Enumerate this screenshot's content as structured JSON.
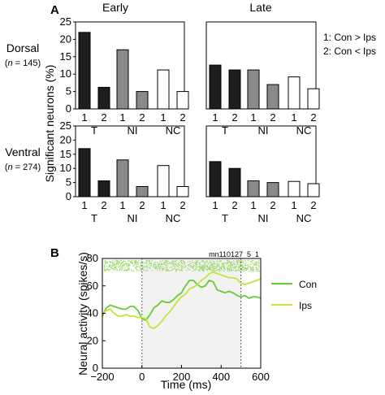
{
  "panel_labels": {
    "a": "A",
    "b": "B"
  },
  "column_titles": [
    "Early",
    "Late"
  ],
  "row_labels": [
    {
      "name": "Dorsal",
      "n_prefix": "n",
      "n_value": " = 145"
    },
    {
      "name": "Ventral",
      "n_prefix": "n",
      "n_value": " = 274"
    }
  ],
  "legend_a": [
    "1: Con > Ips",
    "2: Con < Ips"
  ],
  "colors": {
    "T": "#1e1e1e",
    "NI": "#8a8a8a",
    "NC": "#ffffff",
    "con_line": "#66cc33",
    "ips_line": "#c8e23a",
    "raster": "#9cd86a",
    "shade": "#f2f2f2"
  },
  "chart_data": [
    {
      "type": "bar",
      "ylabel": "Significant neurons (%)",
      "ylim": [
        0,
        25
      ],
      "yticks": [
        0,
        5,
        10,
        15,
        20,
        25
      ],
      "groups": [
        "T",
        "NI",
        "NC"
      ],
      "bar_labels": [
        "1",
        "2"
      ],
      "panels": [
        {
          "row": "Dorsal",
          "column": "Early",
          "values": {
            "T": [
              22,
              6.2
            ],
            "NI": [
              17,
              5
            ],
            "NC": [
              11.2,
              5
            ]
          }
        },
        {
          "row": "Dorsal",
          "column": "Late",
          "values": {
            "T": [
              12.6,
              11.2
            ],
            "NI": [
              11.2,
              7
            ],
            "NC": [
              9.2,
              5.8
            ]
          }
        },
        {
          "row": "Ventral",
          "column": "Early",
          "values": {
            "T": [
              17,
              5.6
            ],
            "NI": [
              13,
              3.6
            ],
            "NC": [
              11,
              3.6
            ]
          }
        },
        {
          "row": "Ventral",
          "column": "Late",
          "values": {
            "T": [
              12.4,
              10
            ],
            "NI": [
              5.6,
              5
            ],
            "NC": [
              5.4,
              4.6
            ]
          }
        }
      ]
    },
    {
      "type": "line",
      "xlabel": "Time (ms)",
      "ylabel": "Neural activity (spikes/s)",
      "xlim": [
        -200,
        600
      ],
      "ylim": [
        0,
        80
      ],
      "xticks": [
        -200,
        0,
        200,
        400,
        600
      ],
      "yticks": [
        0,
        20,
        40,
        60,
        80
      ],
      "cell_id": "mn110127_5_1",
      "shaded_region": [
        0,
        500
      ],
      "vlines": [
        0,
        500
      ],
      "series": [
        {
          "name": "Con",
          "x": [
            -200,
            -180,
            -160,
            -140,
            -120,
            -100,
            -80,
            -60,
            -40,
            -20,
            0,
            20,
            40,
            60,
            80,
            100,
            120,
            140,
            160,
            180,
            200,
            220,
            240,
            260,
            280,
            300,
            320,
            340,
            360,
            380,
            400,
            420,
            440,
            460,
            480,
            500,
            520,
            540,
            560,
            580,
            600
          ],
          "y": [
            38,
            44,
            46,
            45,
            44,
            43,
            43,
            45,
            45,
            42,
            36,
            35,
            39,
            44,
            46,
            49,
            48,
            48,
            50,
            53,
            55,
            60,
            64,
            64,
            61,
            59,
            60,
            64,
            63,
            57,
            56,
            55,
            56,
            55,
            53,
            52,
            53,
            51,
            52,
            52,
            51
          ]
        },
        {
          "name": "Ips",
          "x": [
            -200,
            -180,
            -160,
            -140,
            -120,
            -100,
            -80,
            -60,
            -40,
            -20,
            0,
            20,
            40,
            60,
            80,
            100,
            120,
            140,
            160,
            180,
            200,
            220,
            240,
            260,
            280,
            300,
            320,
            340,
            360,
            380,
            400,
            420,
            440,
            460,
            480,
            500,
            520,
            540,
            560,
            580,
            600
          ],
          "y": [
            40,
            42,
            43,
            40,
            38,
            38,
            39,
            38,
            38,
            37,
            37,
            36,
            30,
            29,
            31,
            34,
            38,
            41,
            45,
            49,
            52,
            54,
            58,
            59,
            61,
            64,
            66,
            69,
            70,
            69,
            68,
            67,
            66,
            66,
            65,
            62,
            61,
            62,
            63,
            64,
            65
          ]
        }
      ]
    }
  ]
}
